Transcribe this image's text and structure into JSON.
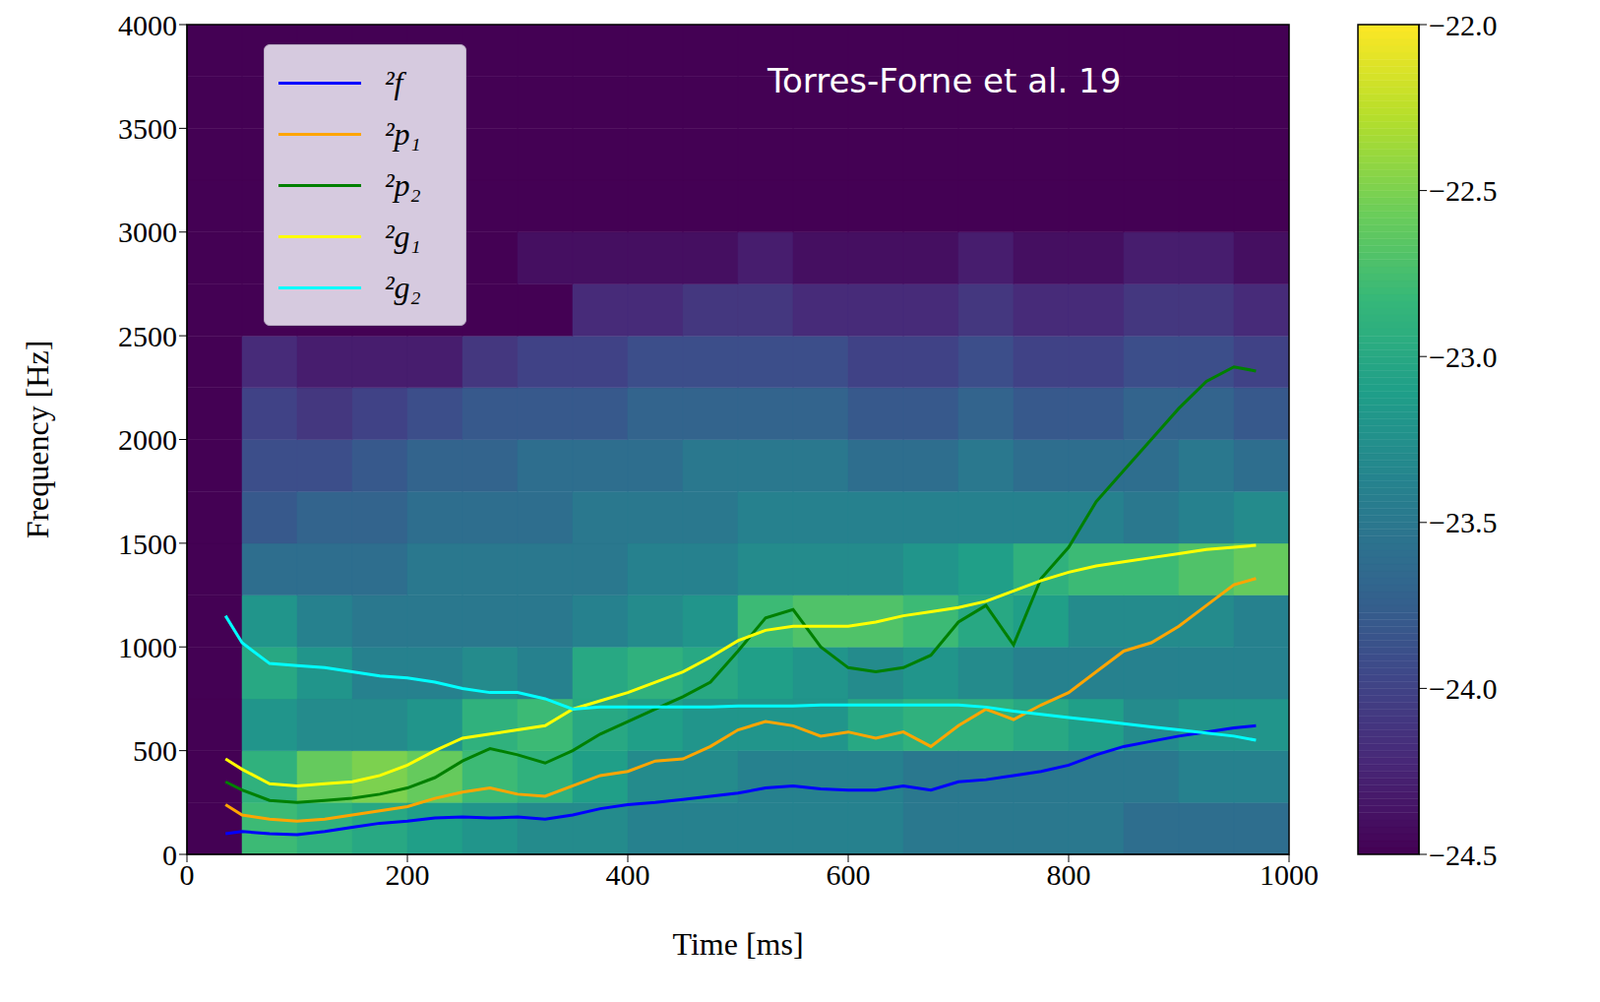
{
  "chart_data": {
    "type": "line",
    "annotation": "Torres-Forne et al. 19",
    "x_label": "Time [ms]",
    "y_label": "Frequency [Hz]",
    "xlim": [
      0,
      1000
    ],
    "xticks": [
      0,
      200,
      400,
      600,
      800,
      1000
    ],
    "ylim": [
      0,
      4000
    ],
    "yticks": [
      0,
      500,
      1000,
      1500,
      2000,
      2500,
      3000,
      3500,
      4000
    ],
    "legend": "upper left",
    "x": [
      35,
      50,
      75,
      100,
      125,
      150,
      175,
      200,
      225,
      250,
      275,
      300,
      325,
      350,
      375,
      400,
      425,
      450,
      475,
      500,
      525,
      550,
      575,
      600,
      625,
      650,
      675,
      700,
      725,
      750,
      775,
      800,
      825,
      850,
      875,
      900,
      925,
      950,
      970
    ],
    "series": [
      {
        "name": "²f",
        "color": "#0000ff",
        "values": [
          100,
          110,
          100,
          95,
          110,
          130,
          150,
          160,
          175,
          180,
          175,
          180,
          170,
          190,
          220,
          240,
          250,
          265,
          280,
          295,
          320,
          330,
          315,
          310,
          310,
          330,
          310,
          350,
          360,
          380,
          400,
          430,
          480,
          520,
          545,
          570,
          590,
          610,
          620
        ]
      },
      {
        "name": "²p₁",
        "color": "#ffa500",
        "values": [
          240,
          190,
          170,
          160,
          170,
          190,
          210,
          230,
          270,
          300,
          320,
          290,
          280,
          330,
          380,
          400,
          450,
          460,
          520,
          600,
          640,
          620,
          570,
          590,
          560,
          590,
          520,
          620,
          700,
          650,
          720,
          780,
          880,
          980,
          1020,
          1100,
          1200,
          1300,
          1330
        ]
      },
      {
        "name": "²p₂",
        "color": "#008000",
        "values": [
          350,
          310,
          260,
          250,
          260,
          270,
          290,
          320,
          370,
          450,
          510,
          480,
          440,
          500,
          580,
          640,
          700,
          760,
          830,
          980,
          1140,
          1180,
          1000,
          900,
          880,
          900,
          960,
          1120,
          1200,
          1010,
          1330,
          1480,
          1700,
          1850,
          2000,
          2150,
          2280,
          2350,
          2330
        ]
      },
      {
        "name": "²g₁",
        "color": "#ffff00",
        "values": [
          460,
          410,
          340,
          330,
          340,
          350,
          380,
          430,
          500,
          560,
          580,
          600,
          620,
          700,
          740,
          780,
          830,
          880,
          950,
          1030,
          1080,
          1100,
          1100,
          1100,
          1120,
          1150,
          1170,
          1190,
          1220,
          1270,
          1320,
          1360,
          1390,
          1410,
          1430,
          1450,
          1470,
          1480,
          1490
        ]
      },
      {
        "name": "²g₂",
        "color": "#00ffff",
        "values": [
          1150,
          1020,
          920,
          910,
          900,
          880,
          860,
          850,
          830,
          800,
          780,
          780,
          750,
          700,
          710,
          710,
          710,
          710,
          710,
          715,
          715,
          715,
          720,
          720,
          720,
          720,
          720,
          720,
          710,
          690,
          675,
          660,
          645,
          630,
          615,
          600,
          585,
          570,
          550
        ]
      }
    ],
    "heatmap": {
      "x_edges": [
        0,
        50,
        100,
        150,
        200,
        250,
        300,
        350,
        400,
        450,
        500,
        550,
        600,
        650,
        700,
        750,
        800,
        850,
        900,
        950,
        1000
      ],
      "y_edges": [
        0,
        250,
        500,
        750,
        1000,
        1250,
        1500,
        1750,
        2000,
        2250,
        2500,
        2750,
        3000,
        3250,
        3500,
        3750,
        4000
      ],
      "values": [
        [
          -24.5,
          -22.8,
          -22.9,
          -23.0,
          -23.1,
          -23.2,
          -23.3,
          -23.3,
          -23.4,
          -23.4,
          -23.4,
          -23.4,
          -23.4,
          -23.5,
          -23.5,
          -23.5,
          -23.5,
          -23.6,
          -23.6,
          -23.6
        ],
        [
          -24.5,
          -22.9,
          -22.6,
          -22.5,
          -22.6,
          -22.8,
          -22.9,
          -23.1,
          -23.3,
          -23.3,
          -23.4,
          -23.4,
          -23.4,
          -23.5,
          -23.5,
          -23.5,
          -23.5,
          -23.5,
          -23.4,
          -23.4
        ],
        [
          -24.5,
          -23.2,
          -23.3,
          -23.3,
          -23.2,
          -22.9,
          -22.8,
          -23.0,
          -23.1,
          -23.2,
          -23.2,
          -23.2,
          -23.0,
          -22.9,
          -22.9,
          -23.0,
          -23.1,
          -23.3,
          -23.2,
          -23.2
        ],
        [
          -24.5,
          -23.0,
          -23.2,
          -23.4,
          -23.4,
          -23.3,
          -23.4,
          -23.0,
          -22.9,
          -23.0,
          -23.1,
          -23.2,
          -23.3,
          -23.2,
          -23.3,
          -23.4,
          -23.4,
          -23.4,
          -23.4,
          -23.4
        ],
        [
          -24.5,
          -23.2,
          -23.4,
          -23.5,
          -23.5,
          -23.5,
          -23.5,
          -23.4,
          -23.3,
          -23.2,
          -22.8,
          -22.7,
          -22.7,
          -22.8,
          -23.0,
          -23.1,
          -23.3,
          -23.3,
          -23.3,
          -23.4
        ],
        [
          -24.5,
          -23.6,
          -23.6,
          -23.6,
          -23.5,
          -23.5,
          -23.5,
          -23.5,
          -23.4,
          -23.4,
          -23.3,
          -23.3,
          -23.3,
          -23.2,
          -23.1,
          -22.9,
          -22.8,
          -22.8,
          -22.7,
          -22.6
        ],
        [
          -24.5,
          -23.8,
          -23.7,
          -23.7,
          -23.6,
          -23.6,
          -23.6,
          -23.5,
          -23.5,
          -23.5,
          -23.4,
          -23.4,
          -23.4,
          -23.4,
          -23.4,
          -23.4,
          -23.4,
          -23.5,
          -23.4,
          -23.3
        ],
        [
          -24.5,
          -23.9,
          -23.9,
          -23.8,
          -23.7,
          -23.7,
          -23.6,
          -23.6,
          -23.6,
          -23.5,
          -23.5,
          -23.5,
          -23.6,
          -23.6,
          -23.5,
          -23.6,
          -23.6,
          -23.6,
          -23.5,
          -23.6
        ],
        [
          -24.5,
          -24.0,
          -24.1,
          -24.0,
          -23.9,
          -23.8,
          -23.8,
          -23.8,
          -23.7,
          -23.7,
          -23.7,
          -23.7,
          -23.8,
          -23.8,
          -23.7,
          -23.8,
          -23.8,
          -23.7,
          -23.7,
          -23.8
        ],
        [
          -24.5,
          -24.2,
          -24.3,
          -24.3,
          -24.3,
          -24.1,
          -24.0,
          -24.0,
          -23.9,
          -23.9,
          -23.9,
          -23.9,
          -24.0,
          -24.0,
          -23.9,
          -24.0,
          -24.0,
          -23.9,
          -23.9,
          -24.0
        ],
        [
          -24.5,
          -24.5,
          -24.5,
          -24.5,
          -24.5,
          -24.5,
          -24.5,
          -24.2,
          -24.2,
          -24.1,
          -24.1,
          -24.2,
          -24.2,
          -24.2,
          -24.1,
          -24.2,
          -24.2,
          -24.1,
          -24.1,
          -24.2
        ],
        [
          -24.5,
          -24.5,
          -24.5,
          -24.5,
          -24.5,
          -24.5,
          -24.4,
          -24.4,
          -24.4,
          -24.4,
          -24.3,
          -24.4,
          -24.4,
          -24.4,
          -24.3,
          -24.4,
          -24.4,
          -24.3,
          -24.3,
          -24.4
        ],
        [
          -24.5,
          -24.5,
          -24.5,
          -24.5,
          -24.5,
          -24.5,
          -24.5,
          -24.5,
          -24.5,
          -24.5,
          -24.5,
          -24.5,
          -24.5,
          -24.5,
          -24.5,
          -24.5,
          -24.5,
          -24.5,
          -24.5,
          -24.5
        ],
        [
          -24.5,
          -24.5,
          -24.5,
          -24.5,
          -24.5,
          -24.5,
          -24.5,
          -24.5,
          -24.5,
          -24.5,
          -24.5,
          -24.5,
          -24.5,
          -24.5,
          -24.5,
          -24.5,
          -24.5,
          -24.5,
          -24.5,
          -24.5
        ],
        [
          -24.5,
          -24.5,
          -24.5,
          -24.5,
          -24.5,
          -24.5,
          -24.5,
          -24.5,
          -24.5,
          -24.5,
          -24.5,
          -24.5,
          -24.5,
          -24.5,
          -24.5,
          -24.5,
          -24.5,
          -24.5,
          -24.5,
          -24.5
        ],
        [
          -24.5,
          -24.5,
          -24.5,
          -24.5,
          -24.5,
          -24.5,
          -24.5,
          -24.5,
          -24.5,
          -24.5,
          -24.5,
          -24.5,
          -24.5,
          -24.5,
          -24.5,
          -24.5,
          -24.5,
          -24.5,
          -24.5,
          -24.5
        ]
      ],
      "colorbar": {
        "range": [
          -24.5,
          -22.0
        ],
        "ticks": [
          {
            "value": -22.0,
            "label": "−22.0"
          },
          {
            "value": -22.5,
            "label": "−22.5"
          },
          {
            "value": -23.0,
            "label": "−23.0"
          },
          {
            "value": -23.5,
            "label": "−23.5"
          },
          {
            "value": -24.0,
            "label": "−24.0"
          },
          {
            "value": -24.5,
            "label": "−24.5"
          }
        ]
      }
    }
  }
}
